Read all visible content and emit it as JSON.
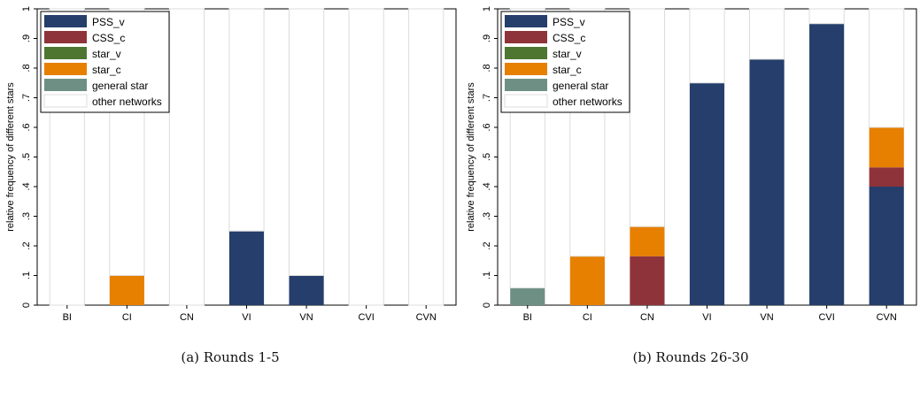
{
  "chart_data": [
    {
      "type": "bar",
      "stacked": true,
      "caption": "(a) Rounds 1-5",
      "ylabel": "relative frequency of different stars",
      "ylim": [
        0,
        1
      ],
      "yticks": [
        "0",
        ".1",
        ".2",
        ".3",
        ".4",
        ".5",
        ".6",
        ".7",
        ".8",
        ".9",
        "1"
      ],
      "categories": [
        "BI",
        "CI",
        "CN",
        "VI",
        "VN",
        "CVI",
        "CVN"
      ],
      "legend_position": "top-left",
      "series": [
        {
          "name": "PSS_v",
          "color": "#253e6b",
          "values": [
            0,
            0,
            0,
            0.25,
            0.1,
            0,
            0
          ]
        },
        {
          "name": "CSS_c",
          "color": "#8f333b",
          "values": [
            0,
            0,
            0,
            0,
            0,
            0,
            0
          ]
        },
        {
          "name": "star_v",
          "color": "#4e7630",
          "values": [
            0,
            0,
            0,
            0,
            0,
            0,
            0
          ]
        },
        {
          "name": "star_c",
          "color": "#e77f00",
          "values": [
            0,
            0.1,
            0,
            0,
            0,
            0,
            0
          ]
        },
        {
          "name": "general star",
          "color": "#6e9084",
          "values": [
            0,
            0,
            0,
            0,
            0,
            0,
            0
          ]
        },
        {
          "name": "other networks",
          "color": "#ffffff",
          "values": [
            1.0,
            0.9,
            1.0,
            0.75,
            0.9,
            1.0,
            1.0
          ]
        }
      ]
    },
    {
      "type": "bar",
      "stacked": true,
      "caption": "(b) Rounds 26-30",
      "ylabel": "relative frequency of different stars",
      "ylim": [
        0,
        1
      ],
      "yticks": [
        "0",
        ".1",
        ".2",
        ".3",
        ".4",
        ".5",
        ".6",
        ".7",
        ".8",
        ".9",
        "1"
      ],
      "categories": [
        "BI",
        "CI",
        "CN",
        "VI",
        "VN",
        "CVI",
        "CVN"
      ],
      "legend_position": "top-left",
      "series": [
        {
          "name": "PSS_v",
          "color": "#253e6b",
          "values": [
            0,
            0,
            0,
            0.75,
            0.83,
            0.95,
            0.4
          ]
        },
        {
          "name": "CSS_c",
          "color": "#8f333b",
          "values": [
            0,
            0,
            0.165,
            0,
            0,
            0,
            0.065
          ]
        },
        {
          "name": "star_v",
          "color": "#4e7630",
          "values": [
            0,
            0,
            0,
            0,
            0,
            0,
            0
          ]
        },
        {
          "name": "star_c",
          "color": "#e77f00",
          "values": [
            0,
            0.165,
            0.1,
            0,
            0,
            0,
            0.135
          ]
        },
        {
          "name": "general star",
          "color": "#6e9084",
          "values": [
            0.058,
            0,
            0,
            0,
            0,
            0,
            0
          ]
        },
        {
          "name": "other networks",
          "color": "#ffffff",
          "values": [
            0.942,
            0.835,
            0.735,
            0.25,
            0.17,
            0.05,
            0.4
          ]
        }
      ]
    }
  ]
}
